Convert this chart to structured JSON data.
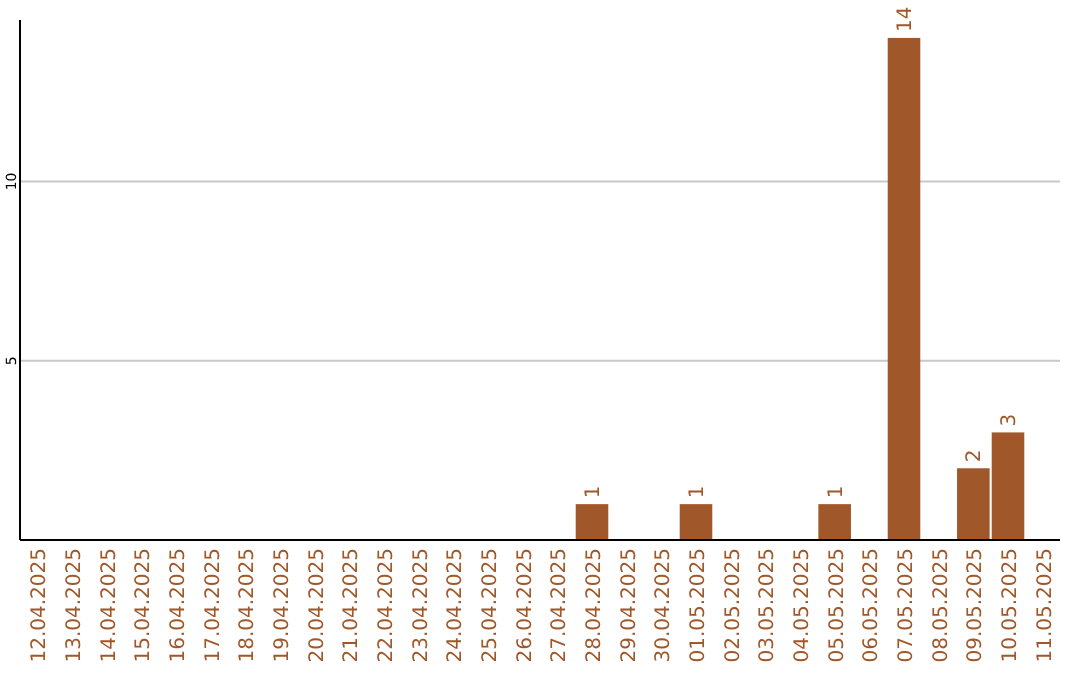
{
  "chart_data": {
    "type": "bar",
    "categories": [
      "12.04.2025",
      "13.04.2025",
      "14.04.2025",
      "15.04.2025",
      "16.04.2025",
      "17.04.2025",
      "18.04.2025",
      "19.04.2025",
      "20.04.2025",
      "21.04.2025",
      "22.04.2025",
      "23.04.2025",
      "24.04.2025",
      "25.04.2025",
      "26.04.2025",
      "27.04.2025",
      "28.04.2025",
      "29.04.2025",
      "30.04.2025",
      "01.05.2025",
      "02.05.2025",
      "03.05.2025",
      "04.05.2025",
      "05.05.2025",
      "06.05.2025",
      "07.05.2025",
      "08.05.2025",
      "09.05.2025",
      "10.05.2025",
      "11.05.2025"
    ],
    "values": [
      0,
      0,
      0,
      0,
      0,
      0,
      0,
      0,
      0,
      0,
      0,
      0,
      0,
      0,
      0,
      0,
      1,
      0,
      0,
      1,
      0,
      0,
      0,
      1,
      0,
      14,
      0,
      2,
      3,
      0
    ],
    "value_labels": [
      null,
      null,
      null,
      null,
      null,
      null,
      null,
      null,
      null,
      null,
      null,
      null,
      null,
      null,
      null,
      null,
      "1",
      null,
      null,
      "1",
      null,
      null,
      null,
      "1",
      null,
      "14",
      null,
      "2",
      "3",
      null
    ],
    "color": "#a0582a",
    "ylim": [
      0,
      14.5
    ],
    "yticks": [
      5,
      10
    ],
    "grid": "y"
  }
}
